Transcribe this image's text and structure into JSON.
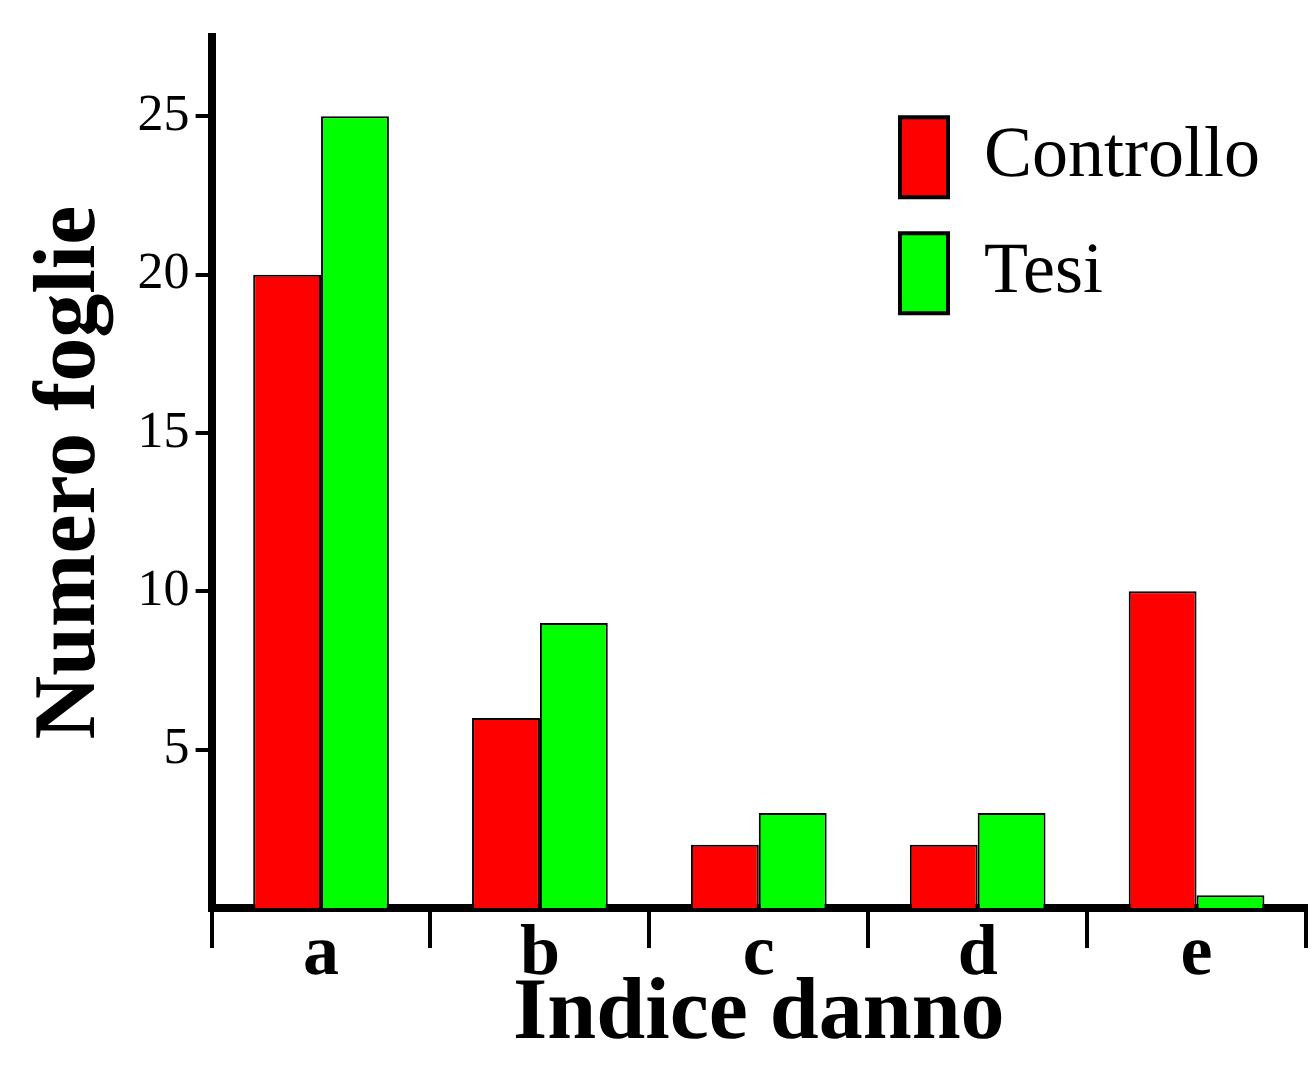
{
  "chart_data": {
    "type": "bar",
    "xlabel": "Indice danno",
    "ylabel": "Numero foglie",
    "categories": [
      "a",
      "b",
      "c",
      "d",
      "e"
    ],
    "series": [
      {
        "name": "Controllo",
        "color": "#ff0000",
        "values": [
          20,
          6,
          2,
          2,
          10
        ]
      },
      {
        "name": "Tesi",
        "color": "#00ff00",
        "values": [
          25,
          9,
          3,
          3,
          0.4
        ]
      }
    ],
    "ylim": [
      0,
      27.5
    ],
    "yticks": [
      5,
      10,
      15,
      20,
      25
    ],
    "grid": false,
    "legend": "top right"
  }
}
